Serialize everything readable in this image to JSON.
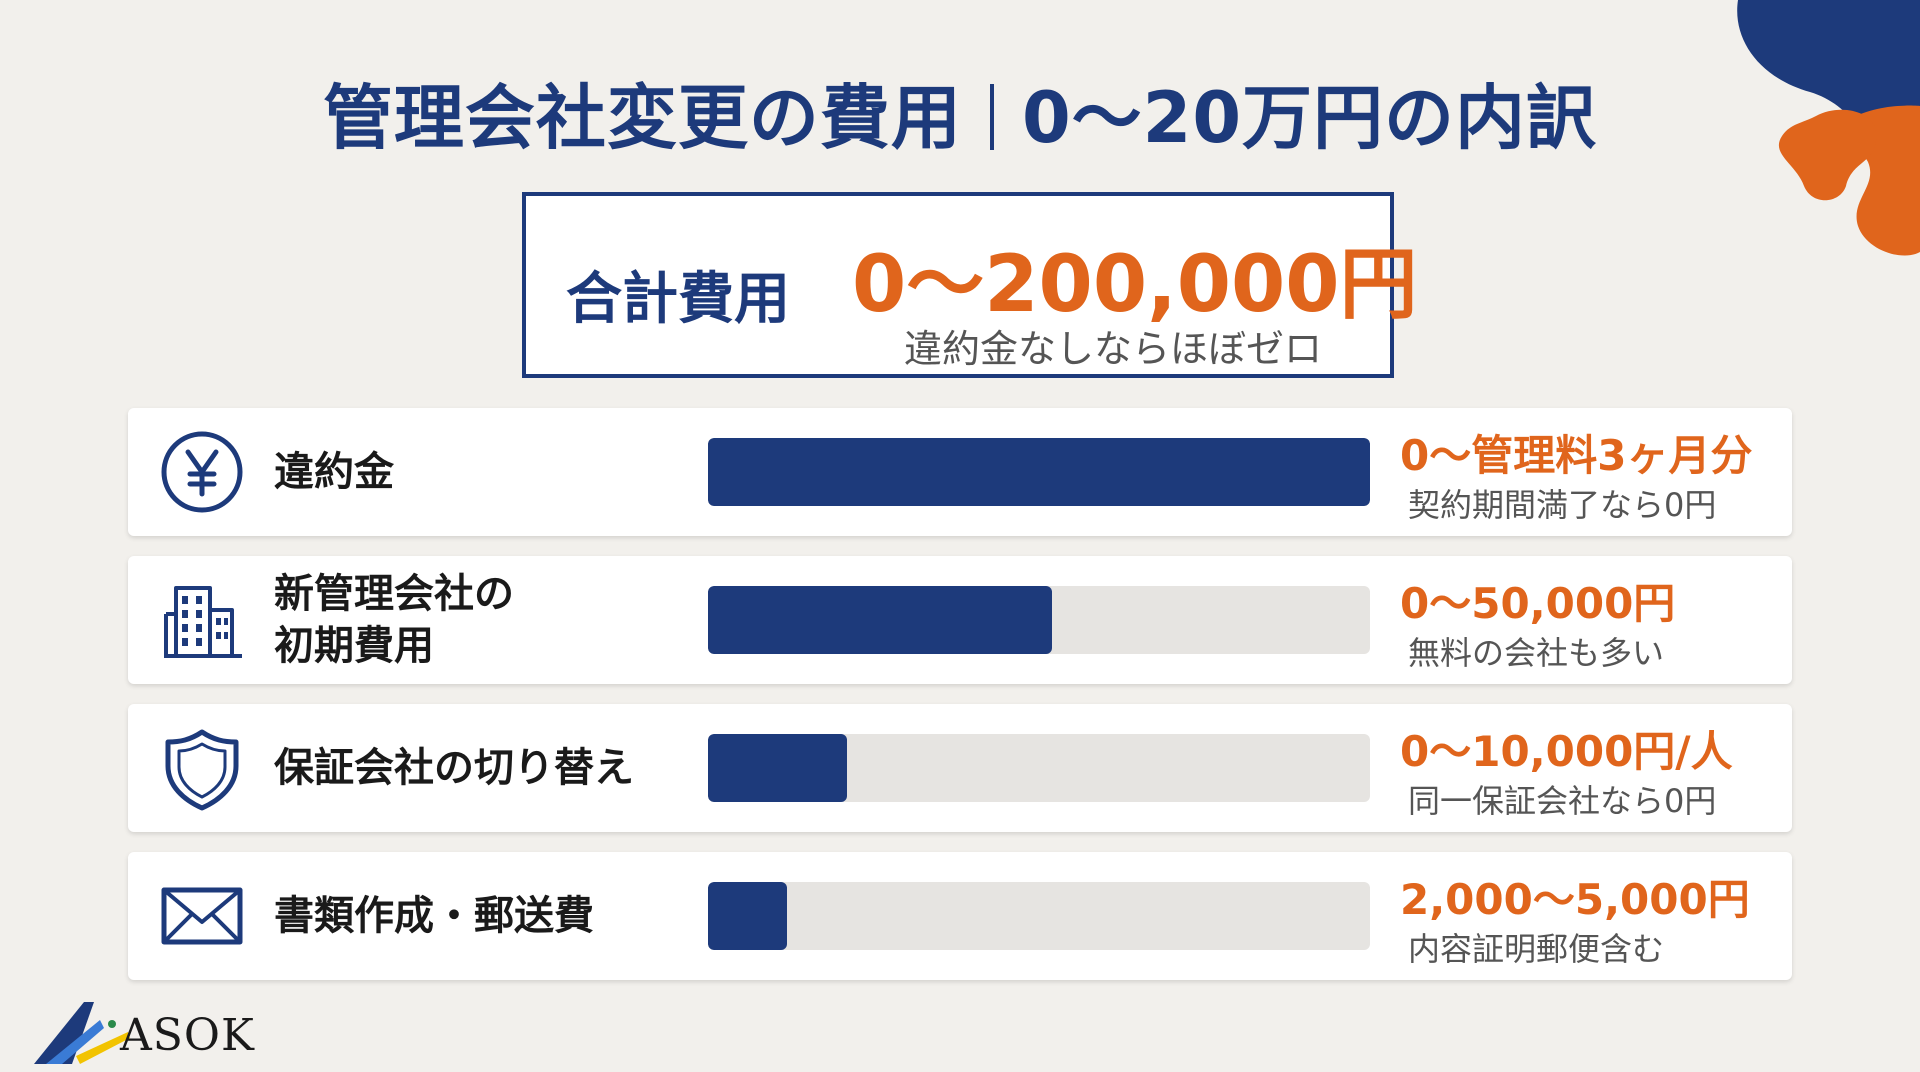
{
  "title": {
    "left": "管理会社変更の費用",
    "right": "0〜20万円の内訳"
  },
  "summary": {
    "label": "合計費用",
    "value": "0〜200,000円",
    "note": "違約金なしならほぼゼロ"
  },
  "chart_data": {
    "type": "bar",
    "categories": [
      "違約金",
      "新管理会社の初期費用",
      "保証会社の切り替え",
      "書類作成・郵送費"
    ],
    "values": [
      1.0,
      0.52,
      0.21,
      0.12
    ],
    "items": [
      {
        "label_lines": [
          "違約金"
        ],
        "value": "0〜管理料3ヶ月分",
        "note": "契約期間満了なら0円",
        "icon": "yen-icon",
        "fill": 1.0
      },
      {
        "label_lines": [
          "新管理会社の",
          "初期費用"
        ],
        "value": "0〜50,000円",
        "note": "無料の会社も多い",
        "icon": "building-icon",
        "fill": 0.52
      },
      {
        "label_lines": [
          "保証会社の切り替え"
        ],
        "value": "0〜10,000円/人",
        "note": "同一保証会社なら0円",
        "icon": "shield-icon",
        "fill": 0.21
      },
      {
        "label_lines": [
          "書類作成・郵送費"
        ],
        "value": "2,000〜5,000円",
        "note": "内容証明郵便含む",
        "icon": "envelope-icon",
        "fill": 0.12
      }
    ],
    "colors": {
      "bar": "#1d3a7b",
      "track": "#e6e4e1",
      "value": "#e0651c"
    }
  },
  "logo": {
    "text": "ASOK"
  }
}
